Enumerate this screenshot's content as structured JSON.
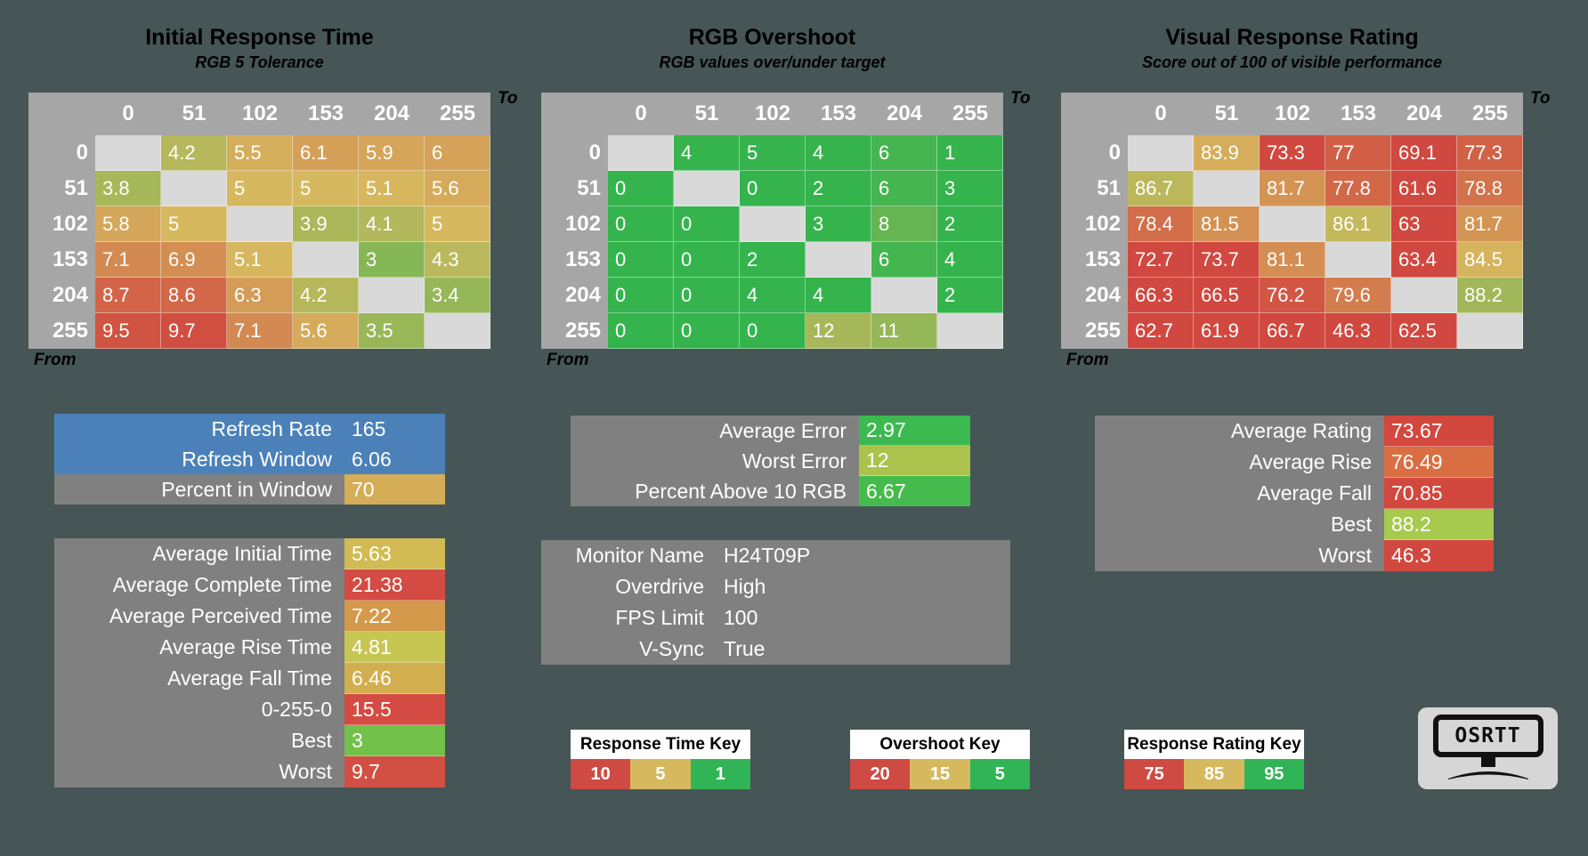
{
  "background": "#465556",
  "labels": {
    "to": "To",
    "from": "From"
  },
  "scale_colors": {
    "green": "#35b44d",
    "gold": "#d6b95f",
    "red": "#d0483f"
  },
  "tables": [
    {
      "title": "Initial Response Time",
      "subtitle": "RGB 5 Tolerance",
      "col_headers": [
        "0",
        "51",
        "102",
        "153",
        "204",
        "255"
      ],
      "row_headers": [
        "0",
        "51",
        "102",
        "153",
        "204",
        "255"
      ],
      "values": [
        [
          null,
          4.2,
          5.5,
          6.1,
          5.9,
          6
        ],
        [
          3.8,
          null,
          5,
          5,
          5.1,
          5.6
        ],
        [
          5.8,
          5,
          null,
          3.9,
          4.1,
          5
        ],
        [
          7.1,
          6.9,
          5.1,
          null,
          3,
          4.3
        ],
        [
          8.7,
          8.6,
          6.3,
          4.2,
          null,
          3.4
        ],
        [
          9.5,
          9.7,
          7.1,
          5.6,
          3.5,
          null
        ]
      ],
      "scale": {
        "green": 1,
        "gold": 5,
        "red": 10
      }
    },
    {
      "title": "RGB Overshoot",
      "subtitle": "RGB values over/under target",
      "col_headers": [
        "0",
        "51",
        "102",
        "153",
        "204",
        "255"
      ],
      "row_headers": [
        "0",
        "51",
        "102",
        "153",
        "204",
        "255"
      ],
      "values": [
        [
          null,
          4,
          5,
          4,
          6,
          1
        ],
        [
          0,
          null,
          0,
          2,
          6,
          3
        ],
        [
          0,
          0,
          null,
          3,
          8,
          2
        ],
        [
          0,
          0,
          2,
          null,
          6,
          4
        ],
        [
          0,
          0,
          4,
          4,
          null,
          2
        ],
        [
          0,
          0,
          0,
          12,
          11,
          null
        ]
      ],
      "scale": {
        "green": 5,
        "gold": 15,
        "red": 20
      }
    },
    {
      "title": "Visual Response Rating",
      "subtitle": "Score out of 100 of visible performance",
      "col_headers": [
        "0",
        "51",
        "102",
        "153",
        "204",
        "255"
      ],
      "row_headers": [
        "0",
        "51",
        "102",
        "153",
        "204",
        "255"
      ],
      "values": [
        [
          null,
          83.9,
          73.3,
          77,
          69.1,
          77.3
        ],
        [
          86.7,
          null,
          81.7,
          77.8,
          61.6,
          78.8
        ],
        [
          78.4,
          81.5,
          null,
          86.1,
          63,
          81.7
        ],
        [
          72.7,
          73.7,
          81.1,
          null,
          63.4,
          84.5
        ],
        [
          66.3,
          66.5,
          76.2,
          79.6,
          null,
          88.2
        ],
        [
          62.7,
          61.9,
          66.7,
          46.3,
          62.5,
          null
        ]
      ],
      "scale": {
        "green": 95,
        "gold": 85,
        "red": 75
      }
    }
  ],
  "stat_boxes": [
    {
      "name": "refresh-stats",
      "rows": [
        {
          "label": "Refresh Rate",
          "value": "165",
          "row_bg": "#4b81b8"
        },
        {
          "label": "Refresh Window",
          "value": "6.06",
          "row_bg": "#4b81b8"
        },
        {
          "label": "Percent in Window",
          "value": "70",
          "value_bg": "#d5ad57"
        }
      ]
    },
    {
      "name": "response-time-averages",
      "rows": [
        {
          "label": "Average Initial Time",
          "value": "5.63",
          "value_bg": "#d2bb52"
        },
        {
          "label": "Average Complete Time",
          "value": "21.38",
          "value_bg": "#d34b42"
        },
        {
          "label": "Average Perceived Time",
          "value": "7.22",
          "value_bg": "#d5994b"
        },
        {
          "label": "Average Rise Time",
          "value": "4.81",
          "value_bg": "#c8c653"
        },
        {
          "label": "Average Fall Time",
          "value": "6.46",
          "value_bg": "#d3ae4e"
        },
        {
          "label": "0-255-0",
          "value": "15.5",
          "value_bg": "#d34b42"
        },
        {
          "label": "Best",
          "value": "3",
          "value_bg": "#72c14a"
        },
        {
          "label": "Worst",
          "value": "9.7",
          "value_bg": "#d25043"
        }
      ]
    },
    {
      "name": "overshoot-stats",
      "rows": [
        {
          "label": "Average Error",
          "value": "2.97",
          "value_bg": "#3cb94f"
        },
        {
          "label": "Worst Error",
          "value": "12",
          "value_bg": "#abc24c"
        },
        {
          "label": "Percent Above 10 RGB",
          "value": "6.67",
          "value_bg": "#45bb4d"
        }
      ]
    },
    {
      "name": "monitor-info",
      "rows": [
        {
          "label": "Monitor Name",
          "value": "H24T09P"
        },
        {
          "label": "Overdrive",
          "value": "High"
        },
        {
          "label": "FPS Limit",
          "value": "100"
        },
        {
          "label": "V-Sync",
          "value": "True"
        }
      ]
    },
    {
      "name": "rating-stats",
      "rows": [
        {
          "label": "Average Rating",
          "value": "73.67",
          "value_bg": "#d2473e"
        },
        {
          "label": "Average Rise",
          "value": "76.49",
          "value_bg": "#d96e43"
        },
        {
          "label": "Average Fall",
          "value": "70.85",
          "value_bg": "#d2473e"
        },
        {
          "label": "Best",
          "value": "88.2",
          "value_bg": "#a5ca4e"
        },
        {
          "label": "Worst",
          "value": "46.3",
          "value_bg": "#d2473e"
        }
      ]
    }
  ],
  "keys": [
    {
      "title": "Response Time Key",
      "stops": [
        {
          "label": "10",
          "color": "#ce4a43"
        },
        {
          "label": "5",
          "color": "#d6b95f"
        },
        {
          "label": "1",
          "color": "#30b456"
        }
      ]
    },
    {
      "title": "Overshoot Key",
      "stops": [
        {
          "label": "20",
          "color": "#ce4a43"
        },
        {
          "label": "15",
          "color": "#d6b95f"
        },
        {
          "label": "5",
          "color": "#30b456"
        }
      ]
    },
    {
      "title": "Response Rating Key",
      "stops": [
        {
          "label": "75",
          "color": "#ce4a43"
        },
        {
          "label": "85",
          "color": "#d6b95f"
        },
        {
          "label": "95",
          "color": "#30b456"
        }
      ]
    }
  ],
  "logo": {
    "text": "OSRTT"
  }
}
